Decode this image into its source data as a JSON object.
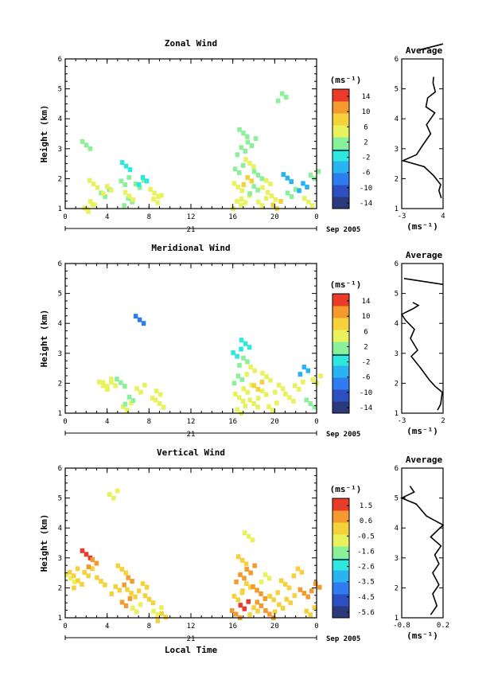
{
  "chart_data": [
    {
      "type": "heatmap",
      "title": "Zonal Wind",
      "ylabel": "Height (km)",
      "ylim": [
        1,
        6
      ],
      "yticks": [
        "1",
        "2",
        "3",
        "4",
        "5",
        "6"
      ],
      "xticks": [
        "0",
        "4",
        "8",
        "12",
        "16",
        "20",
        "0"
      ],
      "date_day_label": "21",
      "date_right_label": "Sep 2005",
      "colorbar": {
        "unit_label": "(ms⁻¹)",
        "tick_labels": [
          "14",
          "10",
          "6",
          "2",
          "-2",
          "-6",
          "-10",
          "-14"
        ],
        "range": [
          -16,
          16
        ]
      },
      "cells": [
        {
          "t": 1.8,
          "h": 3.2,
          "v": 1
        },
        {
          "t": 2.0,
          "h": 1.1,
          "v": 4
        },
        {
          "t": 2.2,
          "h": 1.2,
          "v": 5
        },
        {
          "t": 2.5,
          "h": 1.9,
          "v": 6
        },
        {
          "t": 3.6,
          "h": 1.6,
          "v": 3
        },
        {
          "t": 3.8,
          "h": 1.7,
          "v": 5
        },
        {
          "t": 5.6,
          "h": 2.5,
          "v": -3
        },
        {
          "t": 5.5,
          "h": 2.0,
          "v": 0
        },
        {
          "t": 5.8,
          "h": 1.3,
          "v": 2
        },
        {
          "t": 5.9,
          "h": 1.5,
          "v": 4
        },
        {
          "t": 6.9,
          "h": 1.9,
          "v": 1
        },
        {
          "t": 7.2,
          "h": 2.0,
          "v": -2
        },
        {
          "t": 8.3,
          "h": 1.6,
          "v": 5
        },
        {
          "t": 8.6,
          "h": 1.4,
          "v": 4
        },
        {
          "t": 16.2,
          "h": 1.2,
          "v": 6
        },
        {
          "t": 16.3,
          "h": 1.8,
          "v": 4
        },
        {
          "t": 16.4,
          "h": 2.4,
          "v": 2
        },
        {
          "t": 16.6,
          "h": 3.0,
          "v": 0
        },
        {
          "t": 16.8,
          "h": 3.6,
          "v": 3
        },
        {
          "t": 17.0,
          "h": 1.4,
          "v": 5
        },
        {
          "t": 17.2,
          "h": 2.0,
          "v": 7
        },
        {
          "t": 17.4,
          "h": 2.6,
          "v": 4
        },
        {
          "t": 17.6,
          "h": 3.3,
          "v": 1
        },
        {
          "t": 17.8,
          "h": 1.7,
          "v": 3
        },
        {
          "t": 18.2,
          "h": 2.2,
          "v": 2
        },
        {
          "t": 18.6,
          "h": 1.3,
          "v": 6
        },
        {
          "t": 19.0,
          "h": 1.9,
          "v": 4
        },
        {
          "t": 19.5,
          "h": 1.5,
          "v": 5
        },
        {
          "t": 20.0,
          "h": 1.2,
          "v": 7
        },
        {
          "t": 20.5,
          "h": 4.8,
          "v": 1
        },
        {
          "t": 21.0,
          "h": 2.1,
          "v": -4
        },
        {
          "t": 21.4,
          "h": 1.6,
          "v": 3
        },
        {
          "t": 22.5,
          "h": 1.8,
          "v": -6
        },
        {
          "t": 23.0,
          "h": 1.3,
          "v": 4
        },
        {
          "t": 23.6,
          "h": 2.2,
          "v": 2
        }
      ],
      "average": {
        "title": "Average",
        "xlabel": "(ms⁻¹)",
        "xticks": [
          "-3",
          "4"
        ],
        "xlim": [
          -3,
          4
        ],
        "ylim": [
          1,
          6
        ],
        "yticks": [
          "1",
          "2",
          "3",
          "4",
          "5",
          "6"
        ],
        "profile": [
          [
            3.7,
            1.35
          ],
          [
            3.3,
            1.6
          ],
          [
            3.6,
            1.8
          ],
          [
            2.4,
            2.1
          ],
          [
            0.8,
            2.4
          ],
          [
            -2.8,
            2.6
          ],
          [
            -0.5,
            2.8
          ],
          [
            0.5,
            3.1
          ],
          [
            1.9,
            3.5
          ],
          [
            1.2,
            3.8
          ],
          [
            2.6,
            4.2
          ],
          [
            1.1,
            4.4
          ],
          [
            1.4,
            4.7
          ],
          [
            2.7,
            4.9
          ],
          [
            2.3,
            5.2
          ],
          [
            2.4,
            5.4
          ]
        ],
        "profile_top": [
          [
            0.0,
            6.3
          ],
          [
            4.0,
            6.5
          ]
        ]
      }
    },
    {
      "type": "heatmap",
      "title": "Meridional Wind",
      "ylabel": "Height (km)",
      "ylim": [
        1,
        6
      ],
      "yticks": [
        "1",
        "2",
        "3",
        "4",
        "5",
        "6"
      ],
      "xticks": [
        "0",
        "4",
        "8",
        "12",
        "16",
        "20",
        "0"
      ],
      "date_day_label": "21",
      "date_right_label": "Sep 2005",
      "colorbar": {
        "unit_label": "(ms⁻¹)",
        "tick_labels": [
          "14",
          "10",
          "6",
          "2",
          "-2",
          "-6",
          "-10",
          "-14"
        ],
        "range": [
          -16,
          16
        ]
      },
      "cells": [
        {
          "t": 3.4,
          "h": 2.0,
          "v": 5
        },
        {
          "t": 3.8,
          "h": 2.1,
          "v": 4
        },
        {
          "t": 4.2,
          "h": 2.0,
          "v": 6
        },
        {
          "t": 5.1,
          "h": 2.1,
          "v": 3
        },
        {
          "t": 5.7,
          "h": 1.3,
          "v": 4
        },
        {
          "t": 5.9,
          "h": 1.5,
          "v": 2
        },
        {
          "t": 6.9,
          "h": 4.2,
          "v": -8
        },
        {
          "t": 7.0,
          "h": 1.9,
          "v": 4
        },
        {
          "t": 8.5,
          "h": 1.7,
          "v": 5
        },
        {
          "t": 8.8,
          "h": 1.4,
          "v": 6
        },
        {
          "t": 16.2,
          "h": 3.1,
          "v": -1
        },
        {
          "t": 16.3,
          "h": 2.2,
          "v": 3
        },
        {
          "t": 16.4,
          "h": 1.6,
          "v": 5
        },
        {
          "t": 16.6,
          "h": 1.2,
          "v": 6
        },
        {
          "t": 16.8,
          "h": 2.8,
          "v": 2
        },
        {
          "t": 17.0,
          "h": 3.4,
          "v": -3
        },
        {
          "t": 17.2,
          "h": 1.9,
          "v": 4
        },
        {
          "t": 17.5,
          "h": 2.5,
          "v": 6
        },
        {
          "t": 17.8,
          "h": 1.4,
          "v": 5
        },
        {
          "t": 18.2,
          "h": 2.0,
          "v": 7
        },
        {
          "t": 18.6,
          "h": 1.7,
          "v": 4
        },
        {
          "t": 19.0,
          "h": 2.3,
          "v": 5
        },
        {
          "t": 19.6,
          "h": 1.3,
          "v": 6
        },
        {
          "t": 20.2,
          "h": 1.9,
          "v": 4
        },
        {
          "t": 21.2,
          "h": 1.6,
          "v": 5
        },
        {
          "t": 22.1,
          "h": 2.0,
          "v": 6
        },
        {
          "t": 22.6,
          "h": 2.5,
          "v": -4
        },
        {
          "t": 23.2,
          "h": 1.4,
          "v": 3
        },
        {
          "t": 23.8,
          "h": 2.2,
          "v": 5
        }
      ],
      "average": {
        "title": "Average",
        "xlabel": "(ms⁻¹)",
        "xticks": [
          "-3",
          "2"
        ],
        "xlim": [
          -3,
          2.2
        ],
        "ylim": [
          1,
          6
        ],
        "yticks": [
          "1",
          "2",
          "3",
          "4",
          "5",
          "6"
        ],
        "profile": [
          [
            1.5,
            1.1
          ],
          [
            1.9,
            1.3
          ],
          [
            2.1,
            1.7
          ],
          [
            1.2,
            1.9
          ],
          [
            0.5,
            2.1
          ],
          [
            -0.6,
            2.5
          ],
          [
            -1.8,
            2.9
          ],
          [
            -1.0,
            3.1
          ],
          [
            -1.9,
            3.5
          ],
          [
            -1.4,
            3.8
          ],
          [
            -2.5,
            4.1
          ],
          [
            -3.0,
            4.3
          ],
          [
            -1.5,
            4.5
          ],
          [
            -0.9,
            4.6
          ],
          [
            -1.6,
            4.7
          ]
        ],
        "profile_top": [
          [
            -2.7,
            5.5
          ],
          [
            2.2,
            5.3
          ]
        ]
      }
    },
    {
      "type": "heatmap",
      "title": "Vertical Wind",
      "ylabel": "Height (km)",
      "xlabel": "Local Time",
      "ylim": [
        1,
        6
      ],
      "yticks": [
        "1",
        "2",
        "3",
        "4",
        "5",
        "6"
      ],
      "xticks": [
        "0",
        "4",
        "8",
        "12",
        "16",
        "20",
        "0"
      ],
      "date_day_label": "21",
      "date_right_label": "Sep 2005",
      "colorbar": {
        "unit_label": "(ms⁻¹)",
        "tick_labels": [
          "1.5",
          "0.6",
          "-0.5",
          "-1.6",
          "-2.6",
          "-3.5",
          "-4.5",
          "-5.6"
        ],
        "range": [
          -6.0,
          2.0
        ]
      },
      "cells": [
        {
          "t": 0.3,
          "h": 2.4,
          "v": -0.5
        },
        {
          "t": 0.6,
          "h": 2.6,
          "v": -0.3
        },
        {
          "t": 1.0,
          "h": 2.2,
          "v": -0.2
        },
        {
          "t": 1.8,
          "h": 3.2,
          "v": 1.2
        },
        {
          "t": 2.0,
          "h": 2.6,
          "v": 0.3
        },
        {
          "t": 2.4,
          "h": 2.9,
          "v": 0.8
        },
        {
          "t": 3.2,
          "h": 2.3,
          "v": -0.4
        },
        {
          "t": 4.4,
          "h": 5.2,
          "v": -1.0
        },
        {
          "t": 4.6,
          "h": 2.0,
          "v": -0.3
        },
        {
          "t": 5.2,
          "h": 2.7,
          "v": -0.1
        },
        {
          "t": 5.6,
          "h": 1.6,
          "v": 0.4
        },
        {
          "t": 5.8,
          "h": 2.3,
          "v": 0.9
        },
        {
          "t": 6.1,
          "h": 1.9,
          "v": -0.2
        },
        {
          "t": 6.6,
          "h": 1.4,
          "v": -0.6
        },
        {
          "t": 7.2,
          "h": 2.1,
          "v": -0.3
        },
        {
          "t": 7.8,
          "h": 1.7,
          "v": 0.2
        },
        {
          "t": 8.6,
          "h": 1.3,
          "v": -0.5
        },
        {
          "t": 9.0,
          "h": 1.1,
          "v": 0.1
        },
        {
          "t": 16.1,
          "h": 1.2,
          "v": 0.6
        },
        {
          "t": 16.3,
          "h": 1.8,
          "v": -0.1
        },
        {
          "t": 16.5,
          "h": 2.4,
          "v": 0.9
        },
        {
          "t": 16.7,
          "h": 3.0,
          "v": -0.4
        },
        {
          "t": 16.9,
          "h": 1.5,
          "v": 1.3
        },
        {
          "t": 17.1,
          "h": 2.1,
          "v": 0.2
        },
        {
          "t": 17.3,
          "h": 3.8,
          "v": -0.8
        },
        {
          "t": 17.5,
          "h": 2.7,
          "v": 0.5
        },
        {
          "t": 17.8,
          "h": 1.3,
          "v": -0.3
        },
        {
          "t": 18.1,
          "h": 2.0,
          "v": 1.0
        },
        {
          "t": 18.5,
          "h": 1.6,
          "v": 0.4
        },
        {
          "t": 18.9,
          "h": 2.4,
          "v": -0.5
        },
        {
          "t": 19.3,
          "h": 1.2,
          "v": 0.7
        },
        {
          "t": 19.7,
          "h": 1.8,
          "v": 0.1
        },
        {
          "t": 20.2,
          "h": 1.4,
          "v": -0.2
        },
        {
          "t": 20.8,
          "h": 2.2,
          "v": 0.3
        },
        {
          "t": 21.3,
          "h": 1.7,
          "v": -0.4
        },
        {
          "t": 22.0,
          "h": 2.6,
          "v": 0.2
        },
        {
          "t": 22.6,
          "h": 1.9,
          "v": 0.5
        },
        {
          "t": 23.2,
          "h": 1.3,
          "v": -0.1
        },
        {
          "t": 23.7,
          "h": 2.1,
          "v": 0.4
        }
      ],
      "average": {
        "title": "Average",
        "xlabel": "(ms⁻¹)",
        "xticks": [
          "-0.8",
          "0.2"
        ],
        "xlim": [
          -0.8,
          0.2
        ],
        "ylim": [
          1,
          6
        ],
        "yticks": [
          "1",
          "2",
          "3",
          "4",
          "5",
          "6"
        ],
        "profile": [
          [
            -0.1,
            1.1
          ],
          [
            0.05,
            1.4
          ],
          [
            -0.05,
            1.8
          ],
          [
            0.1,
            2.1
          ],
          [
            -0.05,
            2.5
          ],
          [
            0.1,
            2.8
          ],
          [
            0.0,
            3.1
          ],
          [
            0.15,
            3.4
          ],
          [
            -0.1,
            3.7
          ],
          [
            0.2,
            4.1
          ],
          [
            -0.2,
            4.4
          ],
          [
            -0.45,
            4.8
          ],
          [
            -0.8,
            5.0
          ],
          [
            -0.5,
            5.2
          ],
          [
            -0.6,
            5.4
          ]
        ]
      }
    }
  ],
  "palette": [
    "#2b3a7a",
    "#2c4fc2",
    "#2e7cf0",
    "#29b3f0",
    "#2ee8e0",
    "#8af09a",
    "#e8f25c",
    "#f5d23c",
    "#f59a2e",
    "#ea3a2a"
  ]
}
